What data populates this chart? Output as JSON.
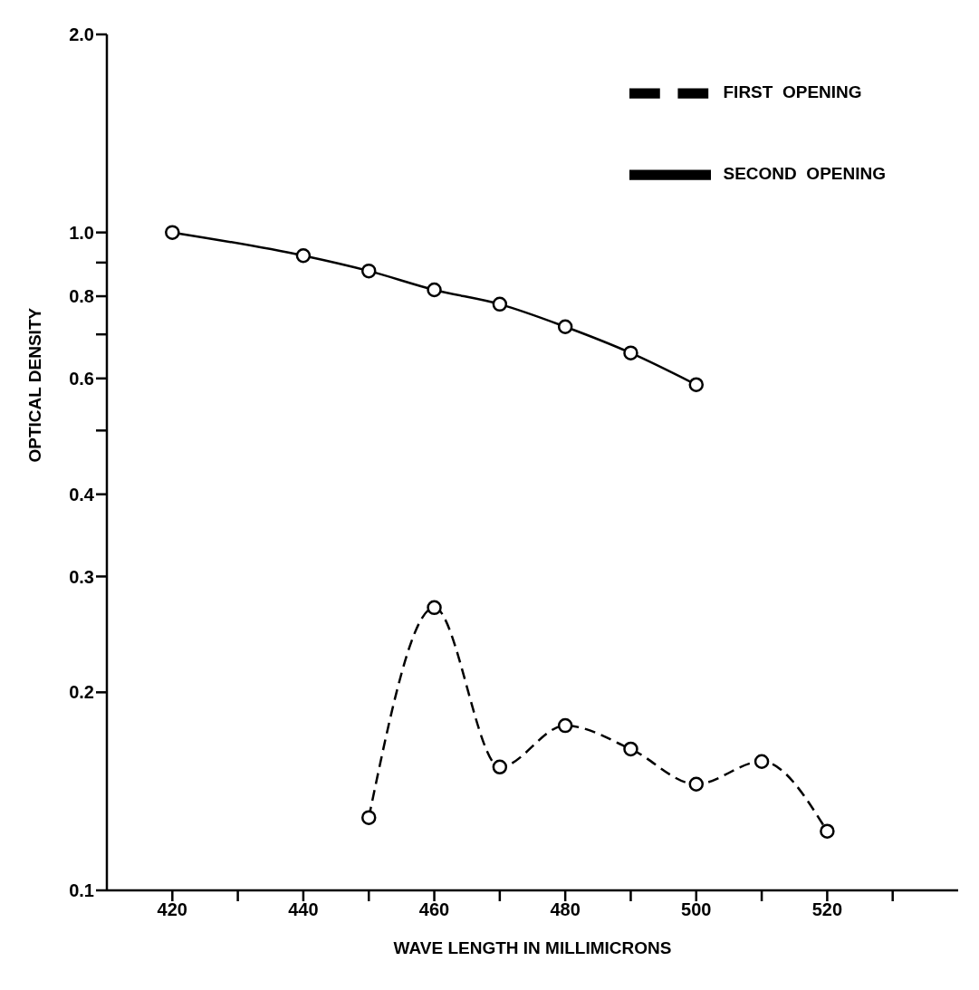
{
  "chart_data": {
    "type": "line",
    "xlabel": "WAVE LENGTH IN MILLIMICRONS",
    "ylabel": "OPTICAL   DENSITY",
    "log": "y",
    "xlim": [
      410,
      540
    ],
    "xticks": [
      {
        "value": 420,
        "label": "420"
      },
      {
        "value": 430,
        "label": null
      },
      {
        "value": 440,
        "label": "440"
      },
      {
        "value": 450,
        "label": null
      },
      {
        "value": 460,
        "label": "460"
      },
      {
        "value": 470,
        "label": null
      },
      {
        "value": 480,
        "label": "480"
      },
      {
        "value": 490,
        "label": null
      },
      {
        "value": 500,
        "label": "500"
      },
      {
        "value": 510,
        "label": null
      },
      {
        "value": 520,
        "label": "520"
      },
      {
        "value": 530,
        "label": null
      }
    ],
    "ylim": [
      0.1,
      2.0
    ],
    "yticks": [
      0.1,
      0.2,
      0.3,
      0.4,
      {
        "value": 0.5,
        "label": null
      },
      0.6,
      {
        "value": 0.7,
        "label": null
      },
      0.8,
      {
        "value": 0.9,
        "label": null
      },
      {
        "value": 1.0,
        "label": "1.0"
      },
      {
        "value": 2.0,
        "label": "2.0"
      }
    ],
    "grid": false,
    "legend": "top right",
    "marker": "circle",
    "series": [
      {
        "name": "FIRST  OPENING",
        "color": "#000000",
        "line_style": "dashed",
        "x": [
          450,
          460,
          470,
          480,
          490,
          500,
          510,
          520
        ],
        "values": [
          0.129,
          0.269,
          0.154,
          0.178,
          0.164,
          0.145,
          0.157,
          0.123
        ]
      },
      {
        "name": "SECOND  OPENING",
        "color": "#000000",
        "line_style": "solid",
        "x": [
          420,
          440,
          450,
          460,
          470,
          480,
          490,
          500
        ],
        "values": [
          1.0,
          0.922,
          0.874,
          0.818,
          0.778,
          0.719,
          0.656,
          0.587
        ]
      }
    ]
  }
}
